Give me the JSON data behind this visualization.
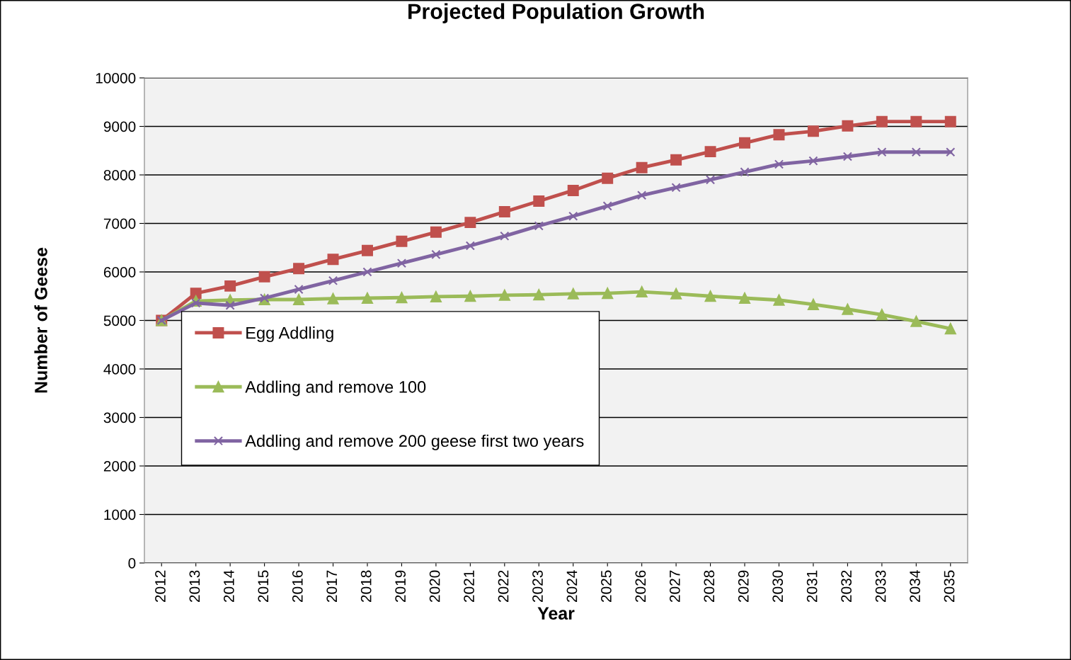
{
  "chart_data": {
    "type": "line",
    "title": "Projected Population Growth",
    "xlabel": "Year",
    "ylabel": "Number of Geese",
    "categories": [
      "2012",
      "2013",
      "2014",
      "2015",
      "2016",
      "2017",
      "2018",
      "2019",
      "2020",
      "2021",
      "2022",
      "2023",
      "2024",
      "2025",
      "2026",
      "2027",
      "2028",
      "2029",
      "2030",
      "2031",
      "2032",
      "2033",
      "2034",
      "2035"
    ],
    "series": [
      {
        "name": "Egg Addling",
        "color": "#c0504d",
        "marker": "square",
        "values": [
          5000,
          5560,
          5710,
          5900,
          6070,
          6260,
          6440,
          6630,
          6820,
          7020,
          7240,
          7460,
          7680,
          7930,
          8150,
          8310,
          8480,
          8660,
          8830,
          8900,
          9010,
          9100,
          9100,
          9100
        ]
      },
      {
        "name": "Addling and remove 100",
        "color": "#9bbb59",
        "marker": "triangle",
        "values": [
          5000,
          5400,
          5420,
          5430,
          5430,
          5450,
          5460,
          5470,
          5490,
          5500,
          5520,
          5530,
          5550,
          5560,
          5590,
          5550,
          5500,
          5460,
          5420,
          5330,
          5230,
          5120,
          4980,
          4830
        ]
      },
      {
        "name": "Addling and remove 200 geese first two years",
        "color": "#8064a2",
        "marker": "cross",
        "values": [
          5000,
          5360,
          5310,
          5460,
          5640,
          5820,
          6000,
          6180,
          6360,
          6540,
          6740,
          6950,
          7150,
          7360,
          7580,
          7740,
          7900,
          8060,
          8220,
          8290,
          8380,
          8470,
          8470,
          8470
        ]
      }
    ],
    "ylim": [
      0,
      10000
    ],
    "yticks": [
      0,
      1000,
      2000,
      3000,
      4000,
      5000,
      6000,
      7000,
      8000,
      9000,
      10000
    ],
    "grid": "y",
    "legend": "left",
    "line_style": "solid"
  }
}
